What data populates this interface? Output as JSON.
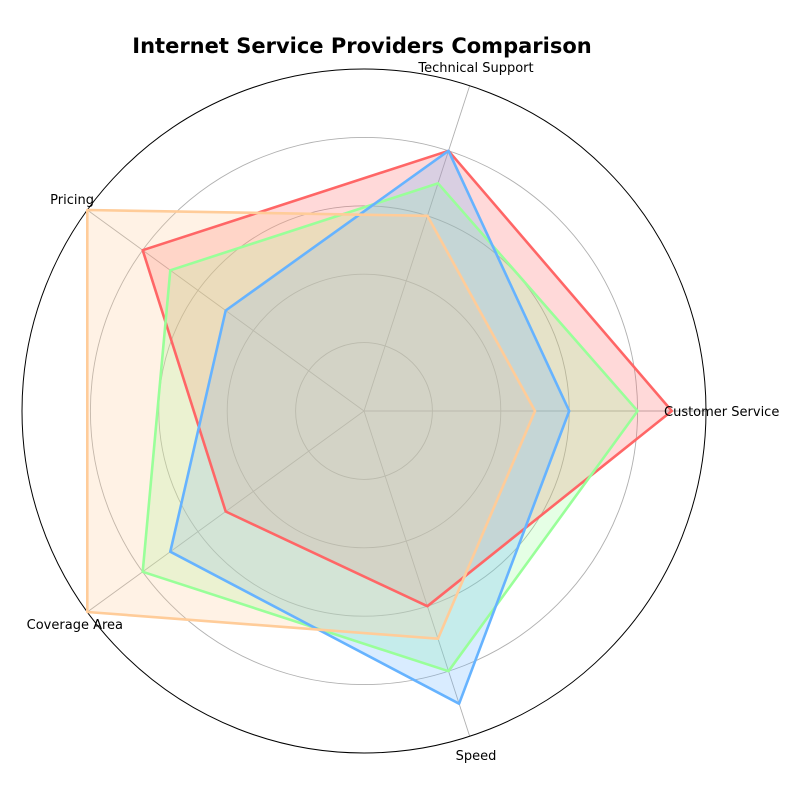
{
  "chart_data": {
    "type": "radar",
    "title": "Internet Service Providers Comparison",
    "axes": [
      "Customer Service",
      "Technical Support",
      "Pricing",
      "Coverage Area",
      "Speed"
    ],
    "rlim": [
      0,
      10
    ],
    "rgrid": [
      2,
      4,
      6,
      8
    ],
    "grid": true,
    "legend": "none",
    "series": [
      {
        "values": [
          9,
          8,
          8,
          5,
          6
        ],
        "color": "#ff6666"
      },
      {
        "values": [
          8,
          7,
          7,
          8,
          8
        ],
        "color": "#99ff99"
      },
      {
        "values": [
          6,
          8,
          5,
          7,
          9
        ],
        "color": "#66b3ff"
      },
      {
        "values": [
          5,
          6,
          10,
          10,
          7
        ],
        "color": "#ffcc99"
      }
    ]
  }
}
